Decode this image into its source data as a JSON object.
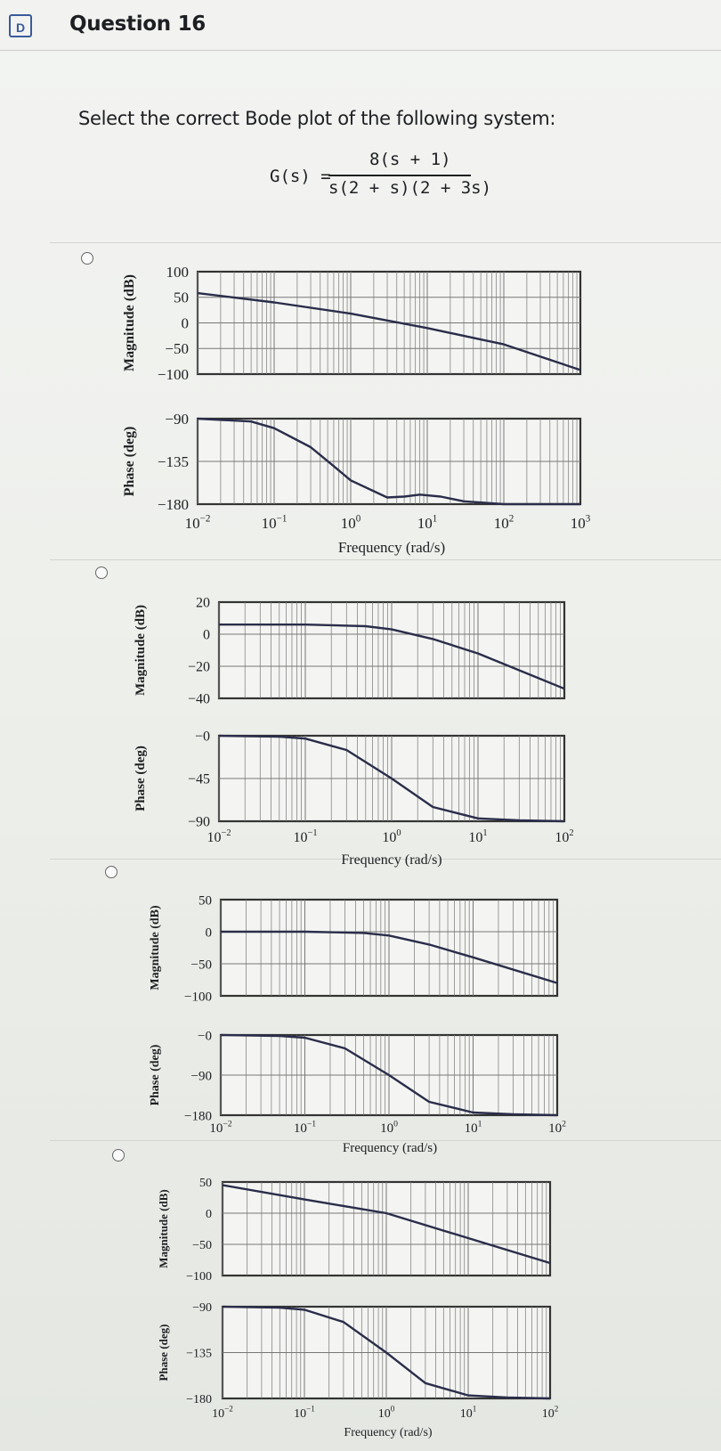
{
  "question": {
    "flag_icon": "D",
    "title": "Question 16",
    "prompt": "Select the correct Bode plot of the following system:"
  },
  "transfer_function": {
    "lhs": "G(s) =",
    "numerator": "8(s + 1)",
    "denominator": "s(2 + s)(2 + 3s)"
  },
  "labels": {
    "magnitude": "Magnitude (dB)",
    "phase": "Phase (deg)",
    "frequency": "Frequency (rad/s)"
  },
  "colors": {
    "curve": "#2a2d4a",
    "grid": "#777777",
    "frame": "#333333"
  },
  "chart_data": [
    {
      "type": "line",
      "option": "A",
      "xlabel": "Frequency (rad/s)",
      "x_ticks": [
        "10^-2",
        "10^-1",
        "10^0",
        "10^1",
        "10^2",
        "10^3"
      ],
      "xlim": [
        0.01,
        1000
      ],
      "log_x": true,
      "magnitude": {
        "ylabel": "Magnitude (dB)",
        "ylim": [
          -100,
          100
        ],
        "y_ticks": [
          "100",
          "50",
          "0",
          "-50",
          "-100"
        ],
        "x": [
          0.01,
          0.1,
          1,
          10,
          100,
          1000
        ],
        "y": [
          58,
          40,
          18,
          -10,
          -42,
          -92
        ]
      },
      "phase": {
        "ylabel": "Phase (deg)",
        "ylim": [
          -180,
          -90
        ],
        "y_ticks": [
          "-90",
          "-135",
          "-180"
        ],
        "x": [
          0.01,
          0.05,
          0.1,
          0.3,
          0.6,
          1,
          3,
          5,
          8,
          15,
          30,
          100,
          1000
        ],
        "y": [
          -90,
          -93,
          -100,
          -120,
          -140,
          -155,
          -173,
          -172,
          -170,
          -172,
          -177,
          -180,
          -180
        ]
      }
    },
    {
      "type": "line",
      "option": "B",
      "xlabel": "Frequency (rad/s)",
      "x_ticks": [
        "10^-2",
        "10^-1",
        "10^0",
        "10^1",
        "10^2"
      ],
      "xlim": [
        0.01,
        100
      ],
      "log_x": true,
      "magnitude": {
        "ylabel": "Magnitude (dB)",
        "ylim": [
          -40,
          20
        ],
        "y_ticks": [
          "20",
          "0",
          "-20",
          "-40"
        ],
        "x": [
          0.01,
          0.1,
          0.5,
          1,
          3,
          10,
          100
        ],
        "y": [
          6,
          6,
          5,
          3,
          -3,
          -12,
          -34
        ]
      },
      "phase": {
        "ylabel": "Phase (deg)",
        "ylim": [
          -90,
          0
        ],
        "y_ticks": [
          "-0",
          "-45",
          "-90"
        ],
        "x": [
          0.01,
          0.05,
          0.1,
          0.3,
          1,
          3,
          10,
          30,
          100
        ],
        "y": [
          0,
          -1,
          -3,
          -15,
          -45,
          -75,
          -87,
          -89,
          -90
        ]
      }
    },
    {
      "type": "line",
      "option": "C",
      "xlabel": "Frequency (rad/s)",
      "x_ticks": [
        "10^-2",
        "10^-1",
        "10^0",
        "10^1",
        "10^2"
      ],
      "xlim": [
        0.01,
        100
      ],
      "log_x": true,
      "magnitude": {
        "ylabel": "Magnitude (dB)",
        "ylim": [
          -100,
          50
        ],
        "y_ticks": [
          "50",
          "0",
          "-50",
          "-100"
        ],
        "x": [
          0.01,
          0.1,
          0.5,
          1,
          3,
          10,
          100
        ],
        "y": [
          0,
          0,
          -2,
          -6,
          -20,
          -40,
          -80
        ]
      },
      "phase": {
        "ylabel": "Phase (deg)",
        "ylim": [
          -180,
          0
        ],
        "y_ticks": [
          "-0",
          "-90",
          "-180"
        ],
        "x": [
          0.01,
          0.05,
          0.1,
          0.3,
          1,
          3,
          10,
          30,
          100
        ],
        "y": [
          0,
          -2,
          -6,
          -30,
          -90,
          -150,
          -174,
          -178,
          -180
        ]
      }
    },
    {
      "type": "line",
      "option": "D",
      "xlabel": "Frequency (rad/s)",
      "x_ticks": [
        "10^-2",
        "10^-1",
        "10^0",
        "10^1",
        "10^2"
      ],
      "xlim": [
        0.01,
        100
      ],
      "log_x": true,
      "magnitude": {
        "ylabel": "Magnitude (dB)",
        "ylim": [
          -100,
          50
        ],
        "y_ticks": [
          "50",
          "0",
          "-50",
          "-100"
        ],
        "x": [
          0.01,
          0.1,
          1,
          10,
          100
        ],
        "y": [
          45,
          22,
          0,
          -40,
          -80
        ]
      },
      "phase": {
        "ylabel": "Phase (deg)",
        "ylim": [
          -180,
          -90
        ],
        "y_ticks": [
          "-90",
          "-135",
          "-180"
        ],
        "x": [
          0.01,
          0.05,
          0.1,
          0.3,
          1,
          3,
          10,
          30,
          100
        ],
        "y": [
          -90,
          -91,
          -93,
          -105,
          -135,
          -165,
          -177,
          -179,
          -180
        ]
      }
    }
  ]
}
